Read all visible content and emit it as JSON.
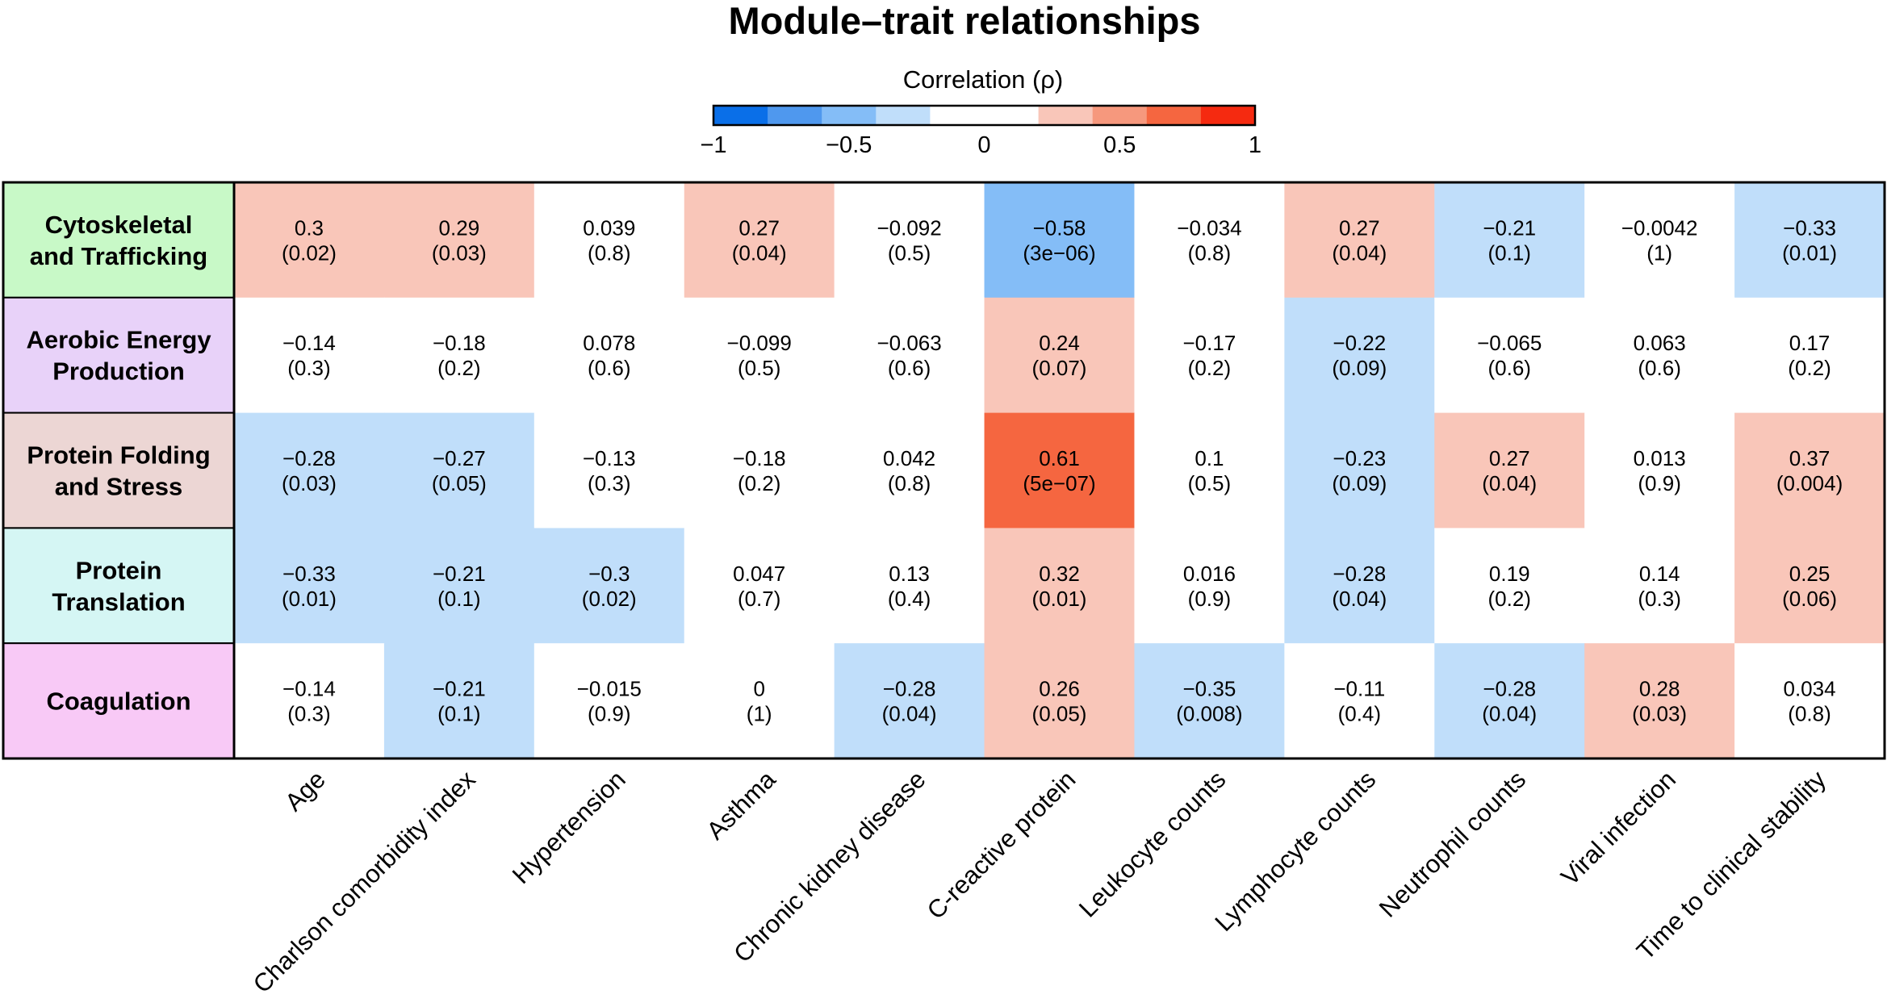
{
  "colors": {
    "neg_strong": "#0a6fe8",
    "neg_2": "#4f98ee",
    "neg_mid": "#84bdf7",
    "neg_light": "#c0defa",
    "neutral": "#ffffff",
    "pos_light": "#f9c6b9",
    "pos_2": "#f6987d",
    "pos_mid": "#f56640",
    "pos_strong": "#f52a10"
  },
  "chart_data": {
    "type": "heatmap",
    "title": "Module–trait relationships",
    "colorbar": {
      "title": "Correlation (ρ)",
      "range": [
        -1,
        1
      ],
      "ticks": [
        -1,
        -0.5,
        0,
        0.5,
        1
      ],
      "tick_labels": [
        "−1",
        "−0.5",
        "0",
        "0.5",
        "1"
      ],
      "steps": [
        "#0a6fe8",
        "#4f98ee",
        "#84bdf7",
        "#c0defa",
        "#ffffff",
        "#ffffff",
        "#f9c6b9",
        "#f6987d",
        "#f56640",
        "#f52a10"
      ]
    },
    "columns": [
      "Age",
      "Charlson comorbidity index",
      "Hypertension",
      "Asthma",
      "Chronic kidney disease",
      "C-reactive protein",
      "Leukocyte counts",
      "Lymphocyte counts",
      "Neutrophil counts",
      "Viral infection",
      "Time to clinical stability"
    ],
    "rows": [
      {
        "name": "Cytoskeletal and Trafficking",
        "lines": [
          "Cytoskeletal",
          "and Trafficking"
        ],
        "label_color": "#c8f9c7",
        "values": [
          0.3,
          0.29,
          0.039,
          0.27,
          -0.092,
          -0.58,
          -0.034,
          0.27,
          -0.21,
          -0.0042,
          -0.33
        ],
        "value_text": [
          "0.3",
          "0.29",
          "0.039",
          "0.27",
          "−0.092",
          "−0.58",
          "−0.034",
          "0.27",
          "−0.21",
          "−0.0042",
          "−0.33"
        ],
        "pvalues": [
          "(0.02)",
          "(0.03)",
          "(0.8)",
          "(0.04)",
          "(0.5)",
          "(3e−06)",
          "(0.8)",
          "(0.04)",
          "(0.1)",
          "(1)",
          "(0.01)"
        ]
      },
      {
        "name": "Aerobic Energy Production",
        "lines": [
          "Aerobic Energy",
          "Production"
        ],
        "label_color": "#e8d2f9",
        "values": [
          -0.14,
          -0.18,
          0.078,
          -0.099,
          -0.063,
          0.24,
          -0.17,
          -0.22,
          -0.065,
          0.063,
          0.17
        ],
        "value_text": [
          "−0.14",
          "−0.18",
          "0.078",
          "−0.099",
          "−0.063",
          "0.24",
          "−0.17",
          "−0.22",
          "−0.065",
          "0.063",
          "0.17"
        ],
        "pvalues": [
          "(0.3)",
          "(0.2)",
          "(0.6)",
          "(0.5)",
          "(0.6)",
          "(0.07)",
          "(0.2)",
          "(0.09)",
          "(0.6)",
          "(0.6)",
          "(0.2)"
        ]
      },
      {
        "name": "Protein Folding and Stress",
        "lines": [
          "Protein Folding",
          "and Stress"
        ],
        "label_color": "#ecd6d4",
        "values": [
          -0.28,
          -0.27,
          -0.13,
          -0.18,
          0.042,
          0.61,
          0.1,
          -0.23,
          0.27,
          0.013,
          0.37
        ],
        "value_text": [
          "−0.28",
          "−0.27",
          "−0.13",
          "−0.18",
          "0.042",
          "0.61",
          "0.1",
          "−0.23",
          "0.27",
          "0.013",
          "0.37"
        ],
        "pvalues": [
          "(0.03)",
          "(0.05)",
          "(0.3)",
          "(0.2)",
          "(0.8)",
          "(5e−07)",
          "(0.5)",
          "(0.09)",
          "(0.04)",
          "(0.9)",
          "(0.004)"
        ]
      },
      {
        "name": "Protein Translation",
        "lines": [
          "Protein",
          "Translation"
        ],
        "label_color": "#d5f6f4",
        "values": [
          -0.33,
          -0.21,
          -0.3,
          0.047,
          0.13,
          0.32,
          0.016,
          -0.28,
          0.19,
          0.14,
          0.25
        ],
        "value_text": [
          "−0.33",
          "−0.21",
          "−0.3",
          "0.047",
          "0.13",
          "0.32",
          "0.016",
          "−0.28",
          "0.19",
          "0.14",
          "0.25"
        ],
        "pvalues": [
          "(0.01)",
          "(0.1)",
          "(0.02)",
          "(0.7)",
          "(0.4)",
          "(0.01)",
          "(0.9)",
          "(0.04)",
          "(0.2)",
          "(0.3)",
          "(0.06)"
        ]
      },
      {
        "name": "Coagulation",
        "lines": [
          "Coagulation"
        ],
        "label_color": "#f8c9f6",
        "values": [
          -0.14,
          -0.21,
          -0.015,
          0,
          -0.28,
          0.26,
          -0.35,
          -0.11,
          -0.28,
          0.28,
          0.034
        ],
        "value_text": [
          "−0.14",
          "−0.21",
          "−0.015",
          "0",
          "−0.28",
          "0.26",
          "−0.35",
          "−0.11",
          "−0.28",
          "0.28",
          "0.034"
        ],
        "pvalues": [
          "(0.3)",
          "(0.1)",
          "(0.9)",
          "(1)",
          "(0.04)",
          "(0.05)",
          "(0.008)",
          "(0.4)",
          "(0.04)",
          "(0.03)",
          "(0.8)"
        ]
      }
    ]
  }
}
